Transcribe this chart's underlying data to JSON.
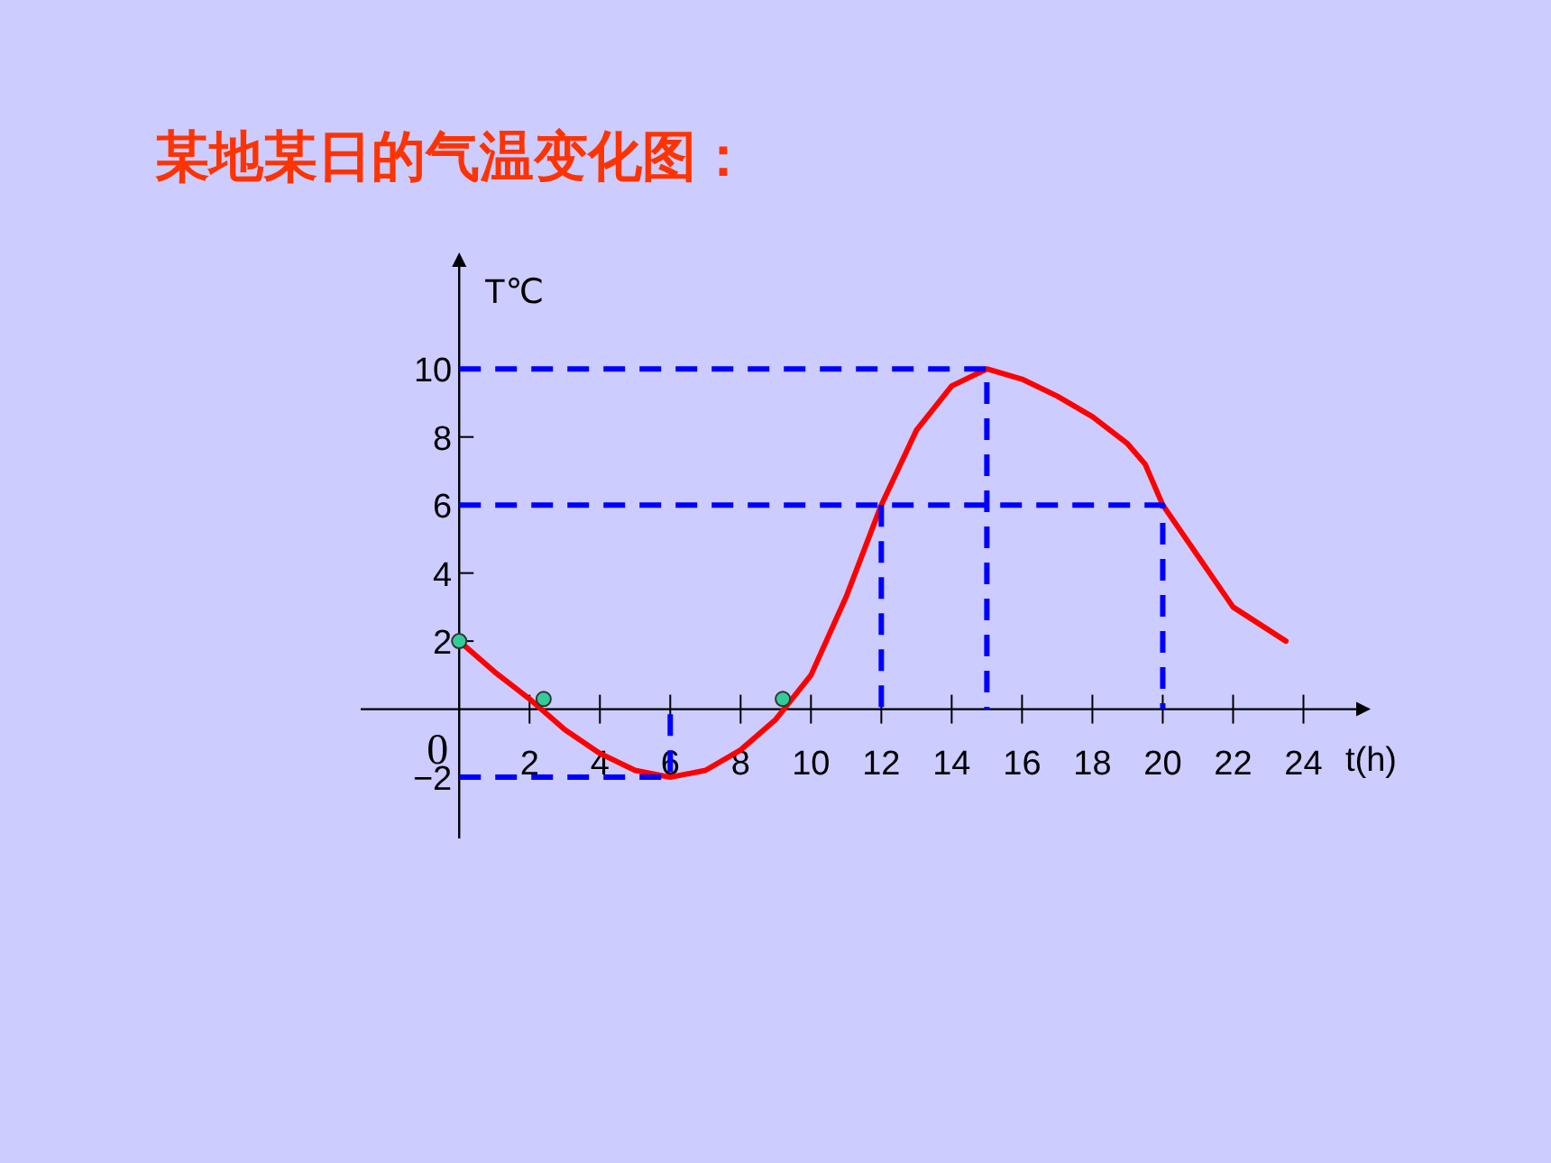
{
  "chart_data": {
    "type": "line",
    "title": "某地某日的气温变化图：",
    "xlabel": "t(h)",
    "ylabel": "T℃",
    "xlim": [
      -2.8,
      25.5
    ],
    "ylim": [
      -3.8,
      13
    ],
    "xticks": [
      {
        "value": 0,
        "label": "0"
      },
      2,
      4,
      6,
      8,
      10,
      12,
      14,
      16,
      18,
      20,
      22,
      24
    ],
    "yticks": [
      {
        "value": -2,
        "label": "−2"
      },
      2,
      4,
      6,
      8,
      10
    ],
    "grid": false,
    "series": [
      {
        "color": "#ff0000",
        "line_style": "solid",
        "marker": "none",
        "x": [
          0,
          1,
          2,
          3,
          4,
          5,
          6,
          7,
          8,
          9,
          10,
          11,
          12,
          13,
          14,
          15,
          16,
          17,
          18,
          19,
          19.5,
          20,
          21,
          22,
          23.5
        ],
        "values": [
          2,
          1.1,
          0.3,
          -0.6,
          -1.3,
          -1.8,
          -2,
          -1.8,
          -1.2,
          -0.3,
          1,
          3.3,
          6,
          8.2,
          9.5,
          10,
          9.7,
          9.2,
          8.6,
          7.8,
          7.2,
          6,
          4.5,
          3,
          2
        ]
      },
      {
        "color": "#0000ff",
        "line_style": "dashed",
        "marker": "none",
        "x": [
          0,
          15,
          15
        ],
        "values": [
          10,
          10,
          0
        ]
      },
      {
        "color": "#0000ff",
        "line_style": "dashed",
        "marker": "none",
        "x": [
          0,
          20,
          20
        ],
        "values": [
          6,
          6,
          0
        ]
      },
      {
        "color": "#0000ff",
        "line_style": "dashed",
        "marker": "none",
        "x": [
          12,
          12
        ],
        "values": [
          6,
          0
        ]
      },
      {
        "color": "#0000ff",
        "line_style": "dashed",
        "marker": "none",
        "x": [
          0,
          6,
          6
        ],
        "values": [
          -2,
          -2,
          0
        ]
      },
      {
        "type": "scatter",
        "color": "#33cc99",
        "marker": "circle",
        "x": [
          0,
          2.4,
          9.2
        ],
        "values": [
          2,
          0.3,
          0.3
        ]
      }
    ]
  }
}
